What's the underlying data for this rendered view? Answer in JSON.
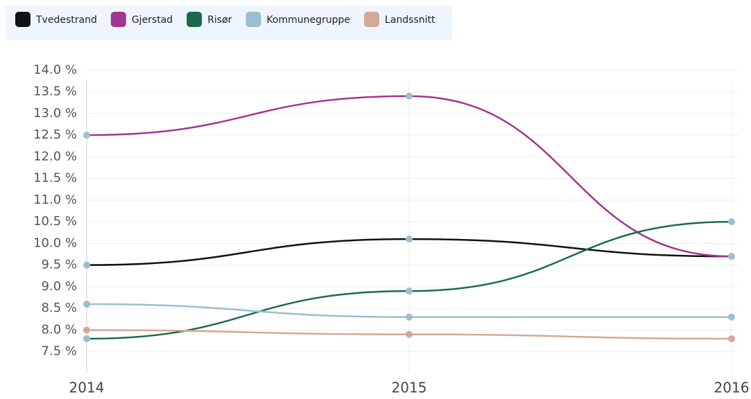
{
  "chart_data": {
    "type": "line",
    "x": [
      2014,
      2015,
      2016
    ],
    "xlim": [
      2014,
      2016
    ],
    "xticks": [
      2014,
      2015,
      2016
    ],
    "ylim": [
      7,
      14.1
    ],
    "yticks": [
      {
        "value": 7.5,
        "label": "7.5 %"
      },
      {
        "value": 8,
        "label": "8.0 %"
      },
      {
        "value": 8.5,
        "label": "8.5 %"
      },
      {
        "value": 9,
        "label": "9.0 %"
      },
      {
        "value": 9.5,
        "label": "9.5 %"
      },
      {
        "value": 10,
        "label": "10.0 %"
      },
      {
        "value": 10.5,
        "label": "10.5 %"
      },
      {
        "value": 11,
        "label": "11.0 %"
      },
      {
        "value": 11.5,
        "label": "11.5 %"
      },
      {
        "value": 12,
        "label": "12.0 %"
      },
      {
        "value": 12.5,
        "label": "12.5 %"
      },
      {
        "value": 13,
        "label": "13.0 %"
      },
      {
        "value": 13.5,
        "label": "13.5 %"
      },
      {
        "value": 14,
        "label": "14.0 %"
      }
    ],
    "grid": true,
    "legend": "top-left",
    "series": [
      {
        "name": "Tvedestrand",
        "color": "#111111",
        "marker_color": "#9bbfd0",
        "values": [
          9.5,
          10.1,
          9.7
        ]
      },
      {
        "name": "Gjerstad",
        "color": "#a0378f",
        "marker_color": "#9bbfd0",
        "values": [
          12.5,
          13.4,
          9.7
        ]
      },
      {
        "name": "Risør",
        "color": "#1b6b4a",
        "marker_color": "#9bbfd0",
        "values": [
          7.8,
          8.9,
          10.5
        ]
      },
      {
        "name": "Kommunegruppe",
        "color": "#9bbfd0",
        "marker_color": "#9bbfd0",
        "values": [
          8.6,
          8.3,
          8.3
        ]
      },
      {
        "name": "Landssnitt",
        "color": "#d4a994",
        "marker_color": "#d4a994",
        "values": [
          8.0,
          7.9,
          7.8
        ]
      }
    ]
  }
}
